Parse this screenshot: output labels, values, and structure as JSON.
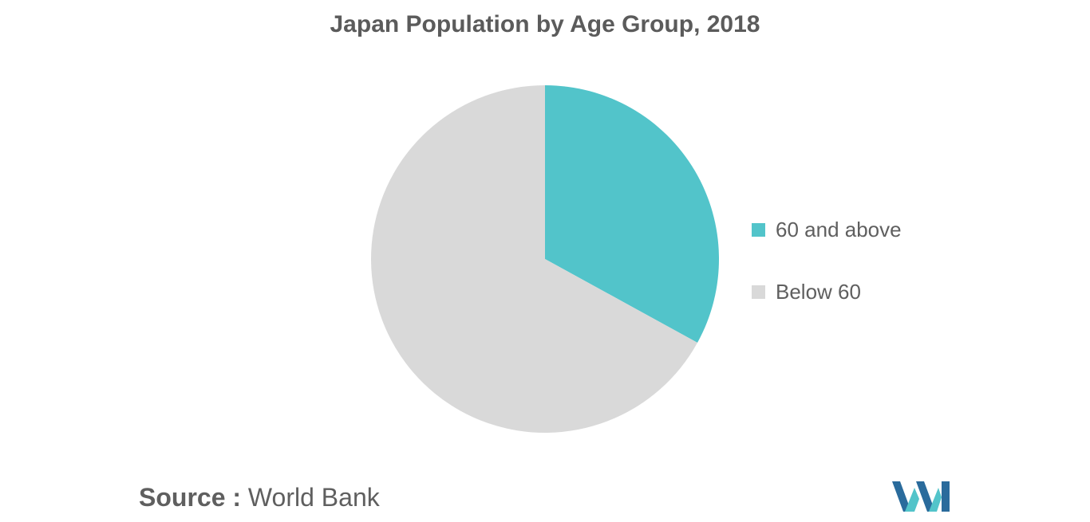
{
  "chart_data": {
    "type": "pie",
    "title": "Japan Population by Age Group, 2018",
    "categories": [
      "60 and above",
      "Below 60"
    ],
    "values": [
      33,
      67
    ],
    "colors": [
      "#52c4ca",
      "#d9d9d9"
    ],
    "start_angle": "12 o'clock",
    "direction": "clockwise",
    "legend_position": "right"
  },
  "source": {
    "label": "Source :",
    "text": "World Bank"
  },
  "logo": {
    "icon": "mordor-intelligence-logo-icon",
    "colors": [
      "#2a6b9c",
      "#52c4ca"
    ]
  }
}
